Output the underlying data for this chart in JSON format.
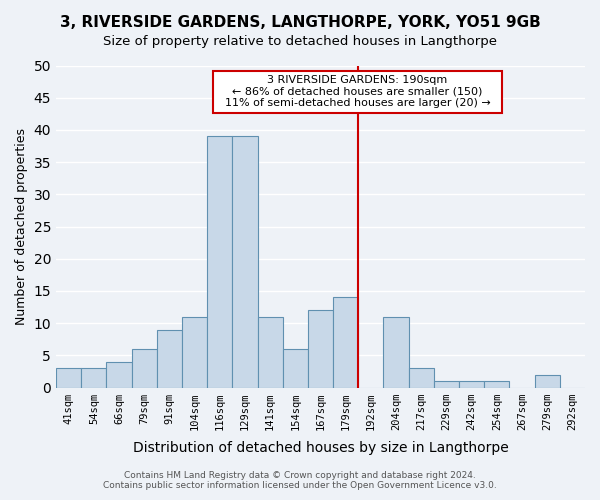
{
  "title": "3, RIVERSIDE GARDENS, LANGTHORPE, YORK, YO51 9GB",
  "subtitle": "Size of property relative to detached houses in Langthorpe",
  "xlabel": "Distribution of detached houses by size in Langthorpe",
  "ylabel": "Number of detached properties",
  "bin_labels": [
    "41sqm",
    "54sqm",
    "66sqm",
    "79sqm",
    "91sqm",
    "104sqm",
    "116sqm",
    "129sqm",
    "141sqm",
    "154sqm",
    "167sqm",
    "179sqm",
    "192sqm",
    "204sqm",
    "217sqm",
    "229sqm",
    "242sqm",
    "254sqm",
    "267sqm",
    "279sqm",
    "292sqm"
  ],
  "bar_heights": [
    3,
    3,
    4,
    6,
    9,
    11,
    39,
    39,
    11,
    6,
    12,
    14,
    0,
    11,
    3,
    1,
    1,
    1,
    0,
    2,
    0
  ],
  "bar_color": "#c8d8e8",
  "bar_edge_color": "#6090b0",
  "vline_color": "#cc0000",
  "vline_index": 11.5,
  "ylim": [
    0,
    50
  ],
  "yticks": [
    0,
    5,
    10,
    15,
    20,
    25,
    30,
    35,
    40,
    45,
    50
  ],
  "annotation_title": "3 RIVERSIDE GARDENS: 190sqm",
  "annotation_line1": "← 86% of detached houses are smaller (150)",
  "annotation_line2": "11% of semi-detached houses are larger (20) →",
  "annotation_box_color": "#ffffff",
  "annotation_box_edge": "#cc0000",
  "footer_line1": "Contains HM Land Registry data © Crown copyright and database right 2024.",
  "footer_line2": "Contains public sector information licensed under the Open Government Licence v3.0.",
  "background_color": "#eef2f7",
  "grid_color": "#ffffff",
  "title_fontsize": 11,
  "subtitle_fontsize": 9.5,
  "xlabel_fontsize": 10,
  "ylabel_fontsize": 9
}
